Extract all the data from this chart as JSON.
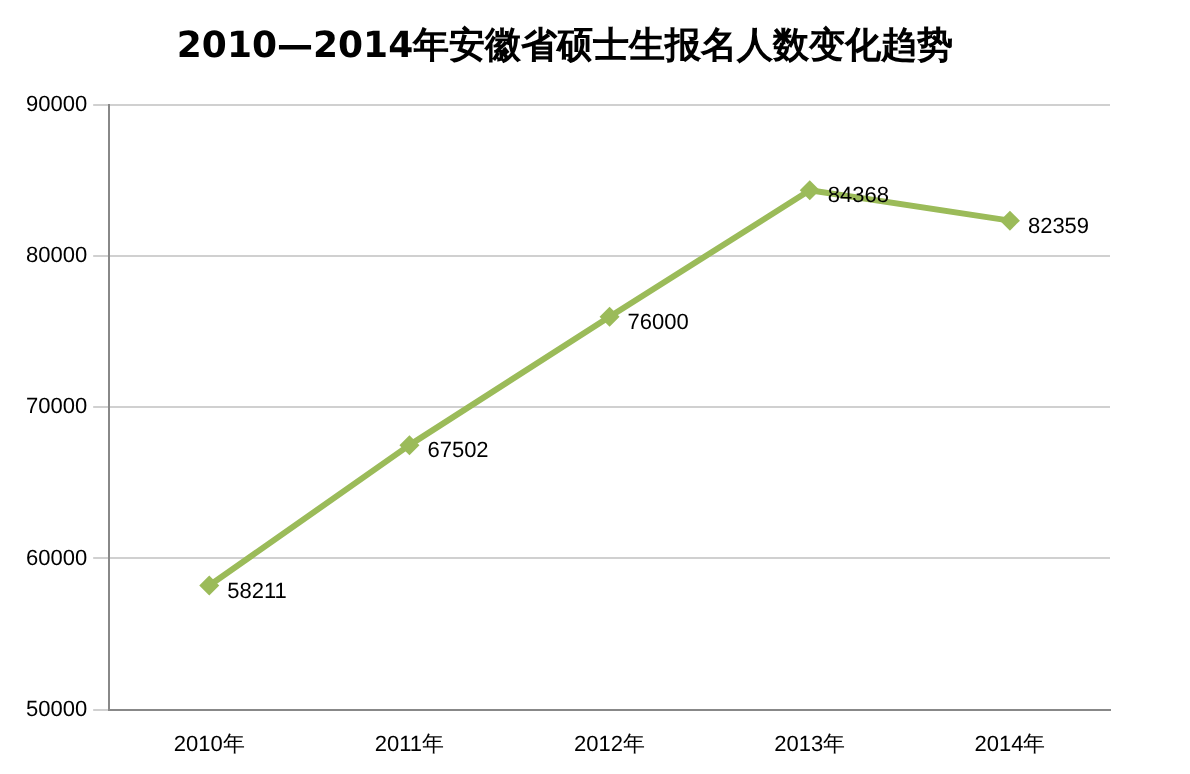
{
  "chart_data": {
    "type": "line",
    "title": "2010—2014年安徽省硕士生报名人数变化趋势",
    "categories": [
      "2010年",
      "2011年",
      "2012年",
      "2013年",
      "2014年"
    ],
    "series": [
      {
        "color": "#9bbb59",
        "values": [
          58211,
          67502,
          76000,
          84368,
          82359
        ]
      }
    ],
    "ylim": [
      50000,
      90000
    ],
    "yticks": [
      50000,
      60000,
      70000,
      80000,
      90000
    ],
    "grid": "y",
    "marker": "diamond",
    "line_style": "solid",
    "data_labels": true,
    "legend": false
  }
}
